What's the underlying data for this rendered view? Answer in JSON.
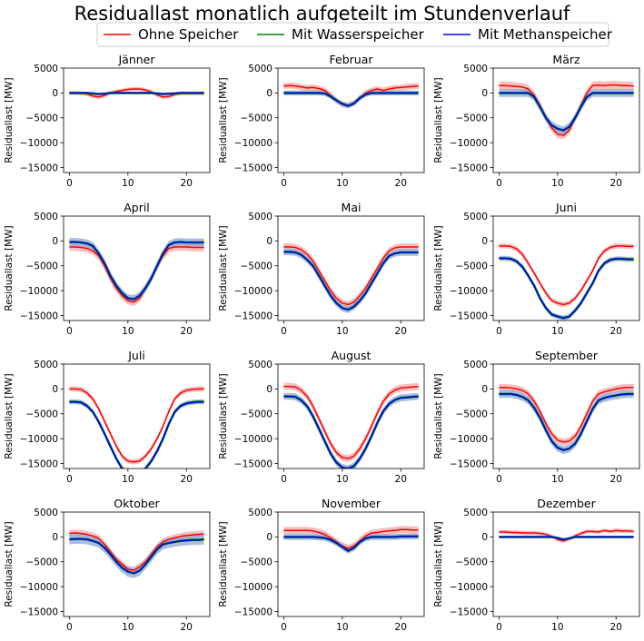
{
  "chart_data": {
    "type": "line",
    "title": "Residuallast monatlich aufgeteilt im Stundenverlauf",
    "ylabel": "Residuallast [MW]",
    "xlabel": "",
    "xlim": [
      -1,
      24
    ],
    "ylim": [
      -16000,
      5000
    ],
    "xticks": [
      "0",
      "10",
      "20"
    ],
    "yticks": [
      "5000",
      "0",
      "-5000",
      "-10000",
      "-15000"
    ],
    "legend": {
      "placement": "top-center",
      "entries": [
        {
          "name": "Ohne Speicher",
          "color": "#ff0000"
        },
        {
          "name": "Mit Wasserspeicher",
          "color": "#008000"
        },
        {
          "name": "Mit Methanspeicher",
          "color": "#0000ff"
        }
      ]
    },
    "series_colors": {
      "ohne": "#ff0000",
      "ohne_band": "#f4a3a3",
      "wasser": "#008000",
      "methan": "#0000ff",
      "methan_band": "#8ea8d8"
    },
    "hours": [
      0,
      1,
      2,
      3,
      4,
      5,
      6,
      7,
      8,
      9,
      10,
      11,
      12,
      13,
      14,
      15,
      16,
      17,
      18,
      19,
      20,
      21,
      22,
      23
    ],
    "panels": [
      {
        "month": "Jänner",
        "ohne": [
          0,
          0,
          -100,
          -200,
          -600,
          -800,
          -500,
          0,
          300,
          500,
          700,
          800,
          800,
          600,
          200,
          -400,
          -800,
          -700,
          -300,
          -100,
          -100,
          -100,
          -100,
          -100
        ],
        "methan": [
          0,
          0,
          0,
          0,
          -100,
          -200,
          -150,
          0,
          0,
          0,
          0,
          0,
          0,
          0,
          0,
          -100,
          -200,
          -150,
          -100,
          0,
          0,
          0,
          0,
          0
        ],
        "ohne_band": 400,
        "methan_band": 200
      },
      {
        "month": "Februar",
        "ohne": [
          1400,
          1500,
          1400,
          1200,
          1000,
          1100,
          900,
          500,
          -500,
          -1500,
          -2300,
          -2500,
          -2000,
          -1000,
          0,
          500,
          800,
          500,
          800,
          1000,
          1100,
          1200,
          1300,
          1400
        ],
        "methan": [
          0,
          0,
          0,
          0,
          0,
          0,
          0,
          -100,
          -700,
          -1500,
          -2200,
          -2600,
          -2100,
          -1000,
          -300,
          0,
          0,
          0,
          0,
          0,
          0,
          0,
          0,
          0
        ],
        "ohne_band": 600,
        "methan_band": 500
      },
      {
        "month": "März",
        "ohne": [
          1500,
          1500,
          1400,
          1300,
          1200,
          800,
          -500,
          -2500,
          -5000,
          -7000,
          -8300,
          -8500,
          -7500,
          -5000,
          -2500,
          0,
          1500,
          1600,
          1500,
          1600,
          1600,
          1500,
          1500,
          1400
        ],
        "methan": [
          0,
          0,
          0,
          0,
          0,
          0,
          -800,
          -2800,
          -5000,
          -6500,
          -7200,
          -7500,
          -6800,
          -5000,
          -2800,
          -800,
          0,
          0,
          0,
          0,
          0,
          0,
          0,
          0
        ],
        "ohne_band": 800,
        "methan_band": 800
      },
      {
        "month": "April",
        "ohne": [
          -1200,
          -1200,
          -1300,
          -1500,
          -2000,
          -3000,
          -5000,
          -7500,
          -9500,
          -11000,
          -12000,
          -12300,
          -11500,
          -9500,
          -7500,
          -5000,
          -3000,
          -1500,
          -1200,
          -1200,
          -1200,
          -1300,
          -1300,
          -1300
        ],
        "methan": [
          -200,
          -200,
          -300,
          -500,
          -1000,
          -2500,
          -4500,
          -7000,
          -9000,
          -10500,
          -11500,
          -11700,
          -11000,
          -9500,
          -7500,
          -5000,
          -2500,
          -800,
          -300,
          -200,
          -300,
          -300,
          -300,
          -300
        ],
        "ohne_band": 800,
        "methan_band": 800
      },
      {
        "month": "Mai",
        "ohne": [
          -1200,
          -1200,
          -1300,
          -1800,
          -2700,
          -4000,
          -6000,
          -8000,
          -10000,
          -11500,
          -12500,
          -12800,
          -12300,
          -11000,
          -9500,
          -7500,
          -5500,
          -3500,
          -2000,
          -1400,
          -1200,
          -1200,
          -1200,
          -1200
        ],
        "methan": [
          -2200,
          -2200,
          -2300,
          -2800,
          -3800,
          -5000,
          -7000,
          -9000,
          -11000,
          -12500,
          -13500,
          -13800,
          -13200,
          -12000,
          -10500,
          -8500,
          -6500,
          -4500,
          -3000,
          -2500,
          -2300,
          -2300,
          -2300,
          -2300
        ],
        "ohne_band": 700,
        "methan_band": 700
      },
      {
        "month": "Juni",
        "ohne": [
          -1000,
          -1000,
          -1100,
          -1600,
          -2700,
          -4500,
          -6500,
          -8500,
          -10500,
          -12000,
          -12500,
          -12800,
          -12500,
          -11500,
          -10000,
          -8000,
          -6000,
          -3500,
          -2000,
          -1300,
          -1000,
          -1000,
          -1100,
          -1100
        ],
        "methan": [
          -3500,
          -3500,
          -3600,
          -4100,
          -5200,
          -7000,
          -9000,
          -11500,
          -13500,
          -14800,
          -15200,
          -15500,
          -15200,
          -14000,
          -12500,
          -10500,
          -8500,
          -6000,
          -4500,
          -3800,
          -3600,
          -3600,
          -3700,
          -3700
        ],
        "ohne_band": 500,
        "methan_band": 500
      },
      {
        "month": "Juli",
        "ohne": [
          0,
          0,
          -100,
          -800,
          -2000,
          -4000,
          -6500,
          -9000,
          -11500,
          -13500,
          -14500,
          -14700,
          -14500,
          -13500,
          -12000,
          -10000,
          -7500,
          -4500,
          -2000,
          -800,
          -300,
          -100,
          0,
          0
        ],
        "methan": [
          -2600,
          -2600,
          -2700,
          -3400,
          -4600,
          -6600,
          -9000,
          -11500,
          -14000,
          -16000,
          -17000,
          -17200,
          -17000,
          -16000,
          -14500,
          -12500,
          -10000,
          -7000,
          -4600,
          -3400,
          -2900,
          -2700,
          -2600,
          -2600
        ],
        "ohne_band": 500,
        "methan_band": 500
      },
      {
        "month": "August",
        "ohne": [
          500,
          500,
          400,
          -300,
          -1500,
          -3500,
          -6000,
          -8500,
          -11000,
          -12800,
          -13800,
          -14000,
          -13500,
          -12000,
          -10000,
          -7500,
          -4800,
          -2500,
          -1000,
          -200,
          200,
          300,
          400,
          500
        ],
        "methan": [
          -1500,
          -1500,
          -1600,
          -2300,
          -3500,
          -5500,
          -8000,
          -10500,
          -13000,
          -14800,
          -15800,
          -16000,
          -15500,
          -14000,
          -12000,
          -9500,
          -6800,
          -4500,
          -3000,
          -2200,
          -1800,
          -1700,
          -1600,
          -1500
        ],
        "ohne_band": 700,
        "methan_band": 700
      },
      {
        "month": "September",
        "ohne": [
          300,
          300,
          200,
          0,
          -300,
          -1000,
          -2500,
          -4500,
          -7000,
          -9000,
          -10300,
          -10700,
          -10500,
          -9500,
          -7500,
          -5000,
          -2500,
          -1000,
          -600,
          -300,
          0,
          200,
          300,
          300
        ],
        "methan": [
          -1000,
          -1000,
          -1000,
          -1200,
          -1600,
          -2300,
          -3800,
          -5800,
          -8300,
          -10500,
          -11800,
          -12300,
          -12000,
          -11000,
          -9000,
          -6500,
          -4000,
          -2300,
          -1800,
          -1500,
          -1300,
          -1100,
          -1000,
          -1000
        ],
        "ohne_band": 700,
        "methan_band": 800
      },
      {
        "month": "Oktober",
        "ohne": [
          700,
          800,
          700,
          500,
          200,
          -300,
          -1500,
          -3000,
          -4500,
          -5500,
          -6500,
          -6700,
          -6000,
          -5000,
          -3500,
          -2000,
          -1000,
          -500,
          -200,
          100,
          300,
          400,
          500,
          600
        ],
        "methan": [
          -500,
          -400,
          -400,
          -500,
          -800,
          -1200,
          -2200,
          -3500,
          -5000,
          -6200,
          -7000,
          -7300,
          -6800,
          -5500,
          -4000,
          -2500,
          -1500,
          -1200,
          -1000,
          -800,
          -700,
          -600,
          -600,
          -500
        ],
        "ohne_band": 700,
        "methan_band": 1000
      },
      {
        "month": "November",
        "ohne": [
          1300,
          1300,
          1300,
          1300,
          1300,
          1200,
          900,
          500,
          -200,
          -1000,
          -1800,
          -2300,
          -1800,
          -800,
          200,
          800,
          900,
          1100,
          1200,
          1300,
          1500,
          1500,
          1400,
          1400
        ],
        "methan": [
          0,
          0,
          0,
          0,
          0,
          0,
          -100,
          -200,
          -600,
          -1200,
          -2000,
          -2800,
          -2200,
          -1000,
          -300,
          0,
          0,
          0,
          0,
          0,
          100,
          100,
          100,
          100
        ],
        "ohne_band": 700,
        "methan_band": 600
      },
      {
        "month": "Dezember",
        "ohne": [
          1000,
          1000,
          900,
          900,
          800,
          800,
          800,
          700,
          500,
          100,
          -500,
          -800,
          -400,
          200,
          700,
          1100,
          1100,
          1000,
          1300,
          1100,
          1300,
          1200,
          1200,
          1100
        ],
        "methan": [
          0,
          0,
          0,
          0,
          0,
          0,
          0,
          0,
          0,
          0,
          -200,
          -500,
          -300,
          0,
          0,
          0,
          0,
          0,
          0,
          0,
          0,
          0,
          0,
          0
        ],
        "ohne_band": 400,
        "methan_band": 200
      }
    ]
  }
}
